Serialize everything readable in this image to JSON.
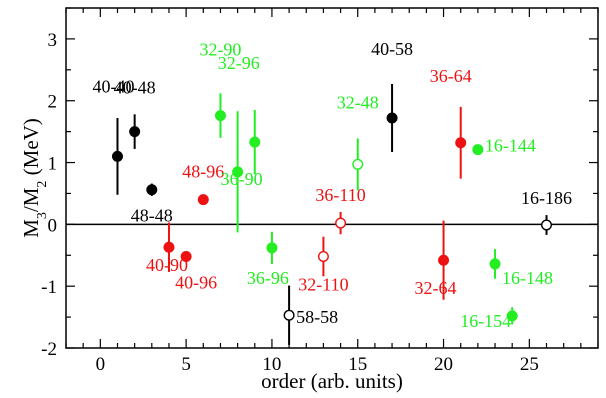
{
  "chart_data": {
    "type": "scatter",
    "title": "",
    "xlabel": "order (arb. units)",
    "ylabel": {
      "base": "M",
      "sub1": "3",
      "slash": "/M",
      "sub2": "2",
      "unit": " (MeV)"
    },
    "xlim": [
      -2,
      29
    ],
    "ylim": [
      -2,
      3.5
    ],
    "x_ticks": [
      0,
      5,
      10,
      15,
      20,
      25
    ],
    "y_ticks": [
      -2,
      -1,
      0,
      1,
      2,
      3
    ],
    "grid": false,
    "zero_line": true,
    "colors": {
      "black": "#000000",
      "red": "#ee1111",
      "green": "#22ee22"
    },
    "points": [
      {
        "x": 1,
        "y": 1.1,
        "err_lo": 0.62,
        "err_hi": 0.62,
        "color": "black",
        "filled": true,
        "label": "40-40"
      },
      {
        "x": 2,
        "y": 1.5,
        "err_lo": 0.28,
        "err_hi": 0.28,
        "color": "black",
        "filled": true,
        "label": "40-48"
      },
      {
        "x": 3,
        "y": 0.56,
        "err_lo": 0.1,
        "err_hi": 0.1,
        "color": "black",
        "filled": true,
        "label": "48-48"
      },
      {
        "x": 4,
        "y": -0.37,
        "err_lo": 0.4,
        "err_hi": 0.4,
        "color": "red",
        "filled": true,
        "label": "40-90"
      },
      {
        "x": 5,
        "y": -0.52,
        "err_lo": 0.08,
        "err_hi": 0.08,
        "color": "red",
        "filled": true,
        "label": "40-96"
      },
      {
        "x": 6,
        "y": 0.4,
        "err_lo": 0.08,
        "err_hi": 0.08,
        "color": "red",
        "filled": true,
        "label": "48-96"
      },
      {
        "x": 7,
        "y": 1.76,
        "err_lo": 0.36,
        "err_hi": 0.36,
        "color": "green",
        "filled": true,
        "label": "32-90"
      },
      {
        "x": 8,
        "y": 0.85,
        "err_lo": 0.98,
        "err_hi": 0.98,
        "color": "green",
        "filled": true,
        "label": ""
      },
      {
        "x": 9,
        "y": 1.33,
        "err_lo": 0.52,
        "err_hi": 0.52,
        "color": "green",
        "filled": true,
        "label": "32-96"
      },
      {
        "x": 10,
        "y": -0.38,
        "err_lo": 0.26,
        "err_hi": 0.26,
        "color": "green",
        "filled": true,
        "label": "36-96"
      },
      {
        "x": 11,
        "y": -1.47,
        "err_lo": 0.48,
        "err_hi": 0.48,
        "color": "black",
        "filled": false,
        "label": "58-58"
      },
      {
        "x": 13,
        "y": -0.52,
        "err_lo": 0.32,
        "err_hi": 0.32,
        "color": "red",
        "filled": false,
        "label": "32-110"
      },
      {
        "x": 14,
        "y": 0.02,
        "err_lo": 0.18,
        "err_hi": 0.18,
        "color": "red",
        "filled": false,
        "label": "36-110"
      },
      {
        "x": 15,
        "y": 0.97,
        "err_lo": 0.42,
        "err_hi": 0.42,
        "color": "green",
        "filled": false,
        "label": "32-48"
      },
      {
        "x": 17,
        "y": 1.72,
        "err_lo": 0.55,
        "err_hi": 0.55,
        "color": "black",
        "filled": true,
        "label": "40-58"
      },
      {
        "x": 20,
        "y": -0.58,
        "err_lo": 0.64,
        "err_hi": 0.64,
        "color": "red",
        "filled": true,
        "label": "32-64"
      },
      {
        "x": 21,
        "y": 1.32,
        "err_lo": 0.58,
        "err_hi": 0.58,
        "color": "red",
        "filled": true,
        "label": "36-64"
      },
      {
        "x": 22,
        "y": 1.21,
        "err_lo": 0.08,
        "err_hi": 0.08,
        "color": "green",
        "filled": true,
        "label": "16-144"
      },
      {
        "x": 23,
        "y": -0.64,
        "err_lo": 0.24,
        "err_hi": 0.24,
        "color": "green",
        "filled": true,
        "label": "16-148"
      },
      {
        "x": 24,
        "y": -1.48,
        "err_lo": 0.14,
        "err_hi": 0.14,
        "color": "green",
        "filled": true,
        "label": "16-154"
      },
      {
        "x": 26,
        "y": -0.01,
        "err_lo": 0.16,
        "err_hi": 0.16,
        "color": "black",
        "filled": false,
        "label": "16-186"
      },
      {
        "x": 8,
        "y": 1.33,
        "err_lo": 0,
        "err_hi": 0,
        "color": "green",
        "filled": false,
        "hidden": true,
        "label": "36-90"
      }
    ]
  }
}
